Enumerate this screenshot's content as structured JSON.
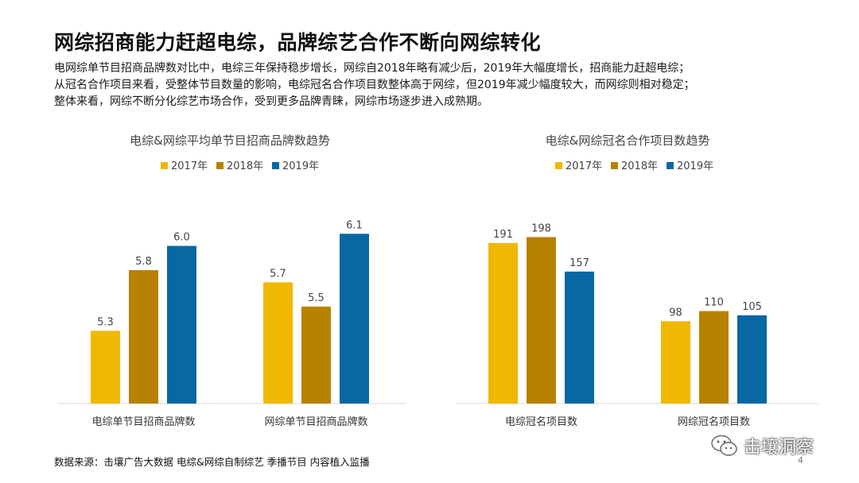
{
  "slide": {
    "title": "网综招商能力赶超电综，品牌综艺合作不断向网综转化",
    "summary": [
      "电网综单节目招商品牌数对比中，电综三年保持稳步增长，网综自2018年略有减少后，2019年大幅度增长，招商能力赶超电综；",
      "从冠名合作项目来看，受整体节目数量的影响，电综冠名合作项目数整体高于网综，但2019年减少幅度较大，而网综则相对稳定；",
      "整体来看，网综不断分化综艺市场合作，受到更多品牌青睐，网综市场逐步进入成熟期。"
    ],
    "source": "数据来源：击壤广告大数据 电综&网综自制综艺 季播节目 内容植入监播",
    "watermark": "击壤洞察",
    "watermark_icon": "wechat-icon",
    "page_number": "4"
  },
  "colors": {
    "2017年": "#F0B800",
    "2018年": "#B88100",
    "2019年": "#0768A4",
    "axis": "#D9D9D9"
  },
  "chart_data": [
    {
      "type": "bar",
      "title": "电综&网综平均单节目招商品牌数趋势",
      "categories": [
        "电综单节目招商品牌数",
        "网综单节目招商品牌数"
      ],
      "series": [
        {
          "name": "2017年",
          "values": [
            5.3,
            5.7
          ]
        },
        {
          "name": "2018年",
          "values": [
            5.8,
            5.5
          ]
        },
        {
          "name": "2019年",
          "values": [
            6.0,
            6.1
          ]
        }
      ],
      "value_labels": [
        [
          "5.3",
          "5.7"
        ],
        [
          "5.8",
          "5.5"
        ],
        [
          "6.0",
          "6.1"
        ]
      ],
      "ylim": [
        4.7,
        6.2
      ],
      "grid": false,
      "legend_position": "top"
    },
    {
      "type": "bar",
      "title": "电综&网综冠名合作项目数趋势",
      "categories": [
        "电综冠名项目数",
        "网综冠名项目数"
      ],
      "series": [
        {
          "name": "2017年",
          "values": [
            191,
            98
          ]
        },
        {
          "name": "2018年",
          "values": [
            198,
            110
          ]
        },
        {
          "name": "2019年",
          "values": [
            157,
            105
          ]
        }
      ],
      "value_labels": [
        [
          "191",
          "98"
        ],
        [
          "198",
          "110"
        ],
        [
          "157",
          "105"
        ]
      ],
      "ylim": [
        0,
        240
      ],
      "grid": false,
      "legend_position": "top"
    }
  ]
}
